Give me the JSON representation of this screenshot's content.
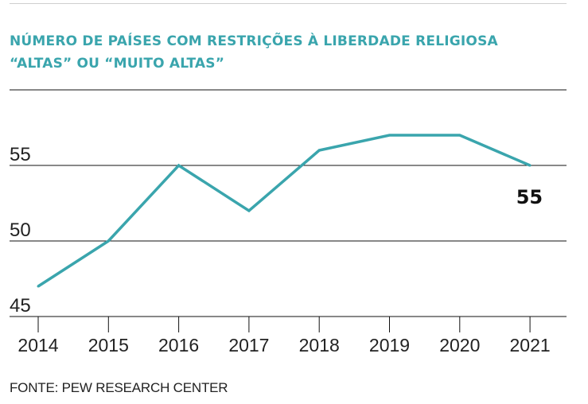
{
  "title_line1": "NÚMERO DE PAÍSES COM RESTRIÇÕES À LIBERDADE RELIGIOSA",
  "title_line2": "“ALTAS” OU “MUITO ALTAS”",
  "source": "FONTE: PEW RESEARCH CENTER",
  "colors": {
    "line": "#3aa5ad",
    "title": "#3aa5ad",
    "axis": "#111111"
  },
  "chart_data": {
    "type": "line",
    "title": "NÚMERO DE PAÍSES COM RESTRIÇÕES À LIBERDADE RELIGIOSA “ALTAS” OU “MUITO ALTAS”",
    "x": [
      "2014",
      "2015",
      "2016",
      "2017",
      "2018",
      "2019",
      "2020",
      "2021"
    ],
    "series": [
      {
        "values": [
          47,
          50,
          55,
          52,
          56,
          57,
          57,
          55
        ]
      }
    ],
    "ylim": [
      45,
      60
    ],
    "yticks": [
      "45",
      "50",
      "55"
    ],
    "annotations": [
      {
        "x": "2021",
        "text": "55"
      }
    ],
    "grid": true
  }
}
